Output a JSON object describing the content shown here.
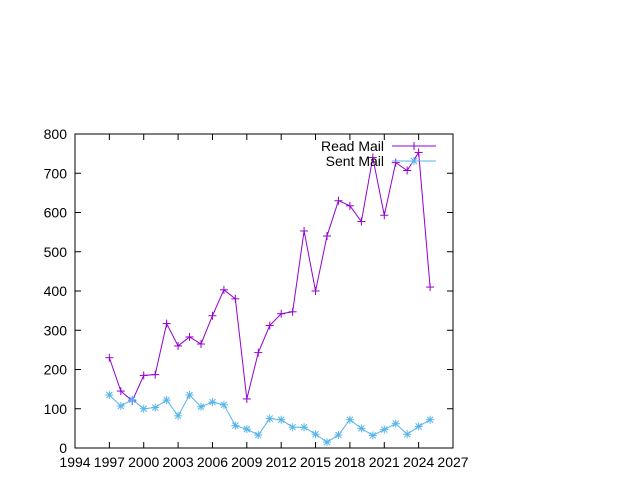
{
  "chart_data": {
    "type": "line",
    "title": "",
    "xlabel": "",
    "ylabel": "",
    "xlim": [
      1994,
      2027
    ],
    "ylim": [
      0,
      800
    ],
    "x_ticks": [
      1994,
      1997,
      2000,
      2003,
      2006,
      2009,
      2012,
      2015,
      2018,
      2021,
      2024,
      2027
    ],
    "y_ticks": [
      0,
      100,
      200,
      300,
      400,
      500,
      600,
      700,
      800
    ],
    "grid": false,
    "legend_position": "top-right",
    "x": [
      1997,
      1998,
      1999,
      2000,
      2001,
      2002,
      2003,
      2004,
      2005,
      2006,
      2007,
      2008,
      2009,
      2010,
      2011,
      2012,
      2013,
      2014,
      2015,
      2016,
      2017,
      2018,
      2019,
      2020,
      2021,
      2022,
      2023,
      2024,
      2025
    ],
    "series": [
      {
        "name": "Read Mail",
        "color": "#9400d3",
        "marker": "plus",
        "values": [
          230,
          145,
          120,
          185,
          187,
          317,
          260,
          283,
          265,
          337,
          403,
          380,
          125,
          243,
          312,
          342,
          347,
          553,
          400,
          540,
          630,
          617,
          577,
          740,
          593,
          727,
          707,
          753,
          410
        ]
      },
      {
        "name": "Sent Mail",
        "color": "#56b4e9",
        "marker": "asterisk",
        "values": [
          135,
          107,
          123,
          100,
          103,
          122,
          82,
          135,
          105,
          117,
          110,
          57,
          48,
          33,
          75,
          72,
          53,
          53,
          35,
          15,
          33,
          72,
          50,
          32,
          47,
          62,
          35,
          55,
          72
        ]
      }
    ]
  }
}
